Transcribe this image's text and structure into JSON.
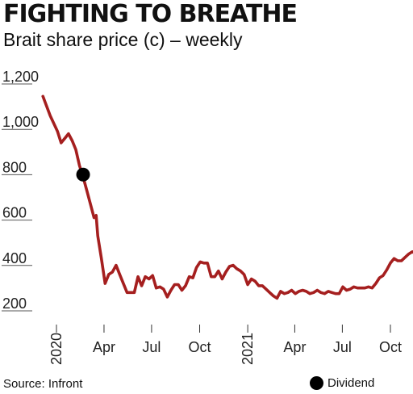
{
  "title": "FIGHTING TO BREATHE",
  "subtitle": "Brait share price  (c) – weekly",
  "source": "Source: Infront",
  "legend_label": "Dividend",
  "colors": {
    "line": "#a51f1f",
    "marker": "#000000",
    "gridline": "#555555"
  },
  "chart_data": {
    "type": "line",
    "ylim": [
      200,
      1200
    ],
    "yticks": [
      {
        "value": 1200,
        "label": "1,200"
      },
      {
        "value": 1000,
        "label": "1,000"
      },
      {
        "value": 800,
        "label": "800"
      },
      {
        "value": 600,
        "label": "600"
      },
      {
        "value": 400,
        "label": "400"
      },
      {
        "value": 200,
        "label": "200"
      }
    ],
    "xlim": [
      "2020-01-01",
      "2021-12-31"
    ],
    "xticks": [
      {
        "date": "2020-01-01",
        "label": "2020",
        "rotate": true
      },
      {
        "date": "2020-04-01",
        "label": "Apr"
      },
      {
        "date": "2020-07-01",
        "label": "Jul"
      },
      {
        "date": "2020-10-01",
        "label": "Oct"
      },
      {
        "date": "2021-01-01",
        "label": "2021",
        "rotate": true
      },
      {
        "date": "2021-04-01",
        "label": "Apr"
      },
      {
        "date": "2021-07-01",
        "label": "Jul"
      },
      {
        "date": "2021-10-01",
        "label": "Oct"
      }
    ],
    "series": [
      {
        "points": [
          [
            "2019-12-06",
            1135
          ],
          [
            "2019-12-20",
            1050
          ],
          [
            "2020-01-03",
            980
          ],
          [
            "2020-01-10",
            930
          ],
          [
            "2020-01-17",
            950
          ],
          [
            "2020-01-24",
            970
          ],
          [
            "2020-01-31",
            940
          ],
          [
            "2020-02-07",
            900
          ],
          [
            "2020-02-14",
            830
          ],
          [
            "2020-02-21",
            780
          ],
          [
            "2020-02-28",
            720
          ],
          [
            "2020-03-06",
            660
          ],
          [
            "2020-03-13",
            600
          ],
          [
            "2020-03-17",
            610
          ],
          [
            "2020-03-20",
            520
          ],
          [
            "2020-03-27",
            420
          ],
          [
            "2020-04-03",
            310
          ],
          [
            "2020-04-10",
            350
          ],
          [
            "2020-04-17",
            360
          ],
          [
            "2020-04-24",
            390
          ],
          [
            "2020-05-01",
            350
          ],
          [
            "2020-05-08",
            310
          ],
          [
            "2020-05-15",
            270
          ],
          [
            "2020-05-22",
            270
          ],
          [
            "2020-05-29",
            270
          ],
          [
            "2020-06-05",
            340
          ],
          [
            "2020-06-12",
            300
          ],
          [
            "2020-06-19",
            340
          ],
          [
            "2020-06-26",
            330
          ],
          [
            "2020-07-03",
            345
          ],
          [
            "2020-07-10",
            290
          ],
          [
            "2020-07-17",
            295
          ],
          [
            "2020-07-24",
            285
          ],
          [
            "2020-07-31",
            250
          ],
          [
            "2020-08-07",
            280
          ],
          [
            "2020-08-14",
            305
          ],
          [
            "2020-08-21",
            305
          ],
          [
            "2020-08-28",
            280
          ],
          [
            "2020-09-04",
            300
          ],
          [
            "2020-09-11",
            340
          ],
          [
            "2020-09-18",
            335
          ],
          [
            "2020-09-25",
            380
          ],
          [
            "2020-10-02",
            405
          ],
          [
            "2020-10-09",
            400
          ],
          [
            "2020-10-16",
            400
          ],
          [
            "2020-10-23",
            340
          ],
          [
            "2020-10-30",
            340
          ],
          [
            "2020-11-06",
            365
          ],
          [
            "2020-11-13",
            330
          ],
          [
            "2020-11-20",
            360
          ],
          [
            "2020-11-27",
            385
          ],
          [
            "2020-12-04",
            390
          ],
          [
            "2020-12-11",
            375
          ],
          [
            "2020-12-18",
            365
          ],
          [
            "2020-12-25",
            350
          ],
          [
            "2021-01-01",
            305
          ],
          [
            "2021-01-08",
            330
          ],
          [
            "2021-01-15",
            320
          ],
          [
            "2021-01-22",
            300
          ],
          [
            "2021-01-29",
            300
          ],
          [
            "2021-02-05",
            285
          ],
          [
            "2021-02-12",
            270
          ],
          [
            "2021-02-19",
            255
          ],
          [
            "2021-02-26",
            245
          ],
          [
            "2021-03-05",
            275
          ],
          [
            "2021-03-12",
            265
          ],
          [
            "2021-03-19",
            270
          ],
          [
            "2021-03-26",
            280
          ],
          [
            "2021-04-02",
            265
          ],
          [
            "2021-04-09",
            275
          ],
          [
            "2021-04-16",
            280
          ],
          [
            "2021-04-23",
            275
          ],
          [
            "2021-04-30",
            265
          ],
          [
            "2021-05-07",
            270
          ],
          [
            "2021-05-14",
            280
          ],
          [
            "2021-05-21",
            270
          ],
          [
            "2021-05-28",
            265
          ],
          [
            "2021-06-04",
            275
          ],
          [
            "2021-06-11",
            270
          ],
          [
            "2021-06-18",
            265
          ],
          [
            "2021-06-25",
            265
          ],
          [
            "2021-07-02",
            295
          ],
          [
            "2021-07-09",
            280
          ],
          [
            "2021-07-16",
            285
          ],
          [
            "2021-07-23",
            295
          ],
          [
            "2021-07-30",
            290
          ],
          [
            "2021-08-06",
            290
          ],
          [
            "2021-08-13",
            290
          ],
          [
            "2021-08-20",
            295
          ],
          [
            "2021-08-27",
            290
          ],
          [
            "2021-09-03",
            310
          ],
          [
            "2021-09-10",
            335
          ],
          [
            "2021-09-17",
            345
          ],
          [
            "2021-09-24",
            370
          ],
          [
            "2021-10-01",
            400
          ],
          [
            "2021-10-08",
            420
          ],
          [
            "2021-10-15",
            410
          ],
          [
            "2021-10-22",
            410
          ],
          [
            "2021-10-29",
            425
          ],
          [
            "2021-11-05",
            440
          ],
          [
            "2021-11-12",
            450
          ],
          [
            "2021-11-19",
            440
          ],
          [
            "2021-11-26",
            390
          ]
        ]
      }
    ],
    "markers": [
      {
        "date": "2020-02-21",
        "value": 790,
        "label": "Dividend"
      }
    ]
  }
}
